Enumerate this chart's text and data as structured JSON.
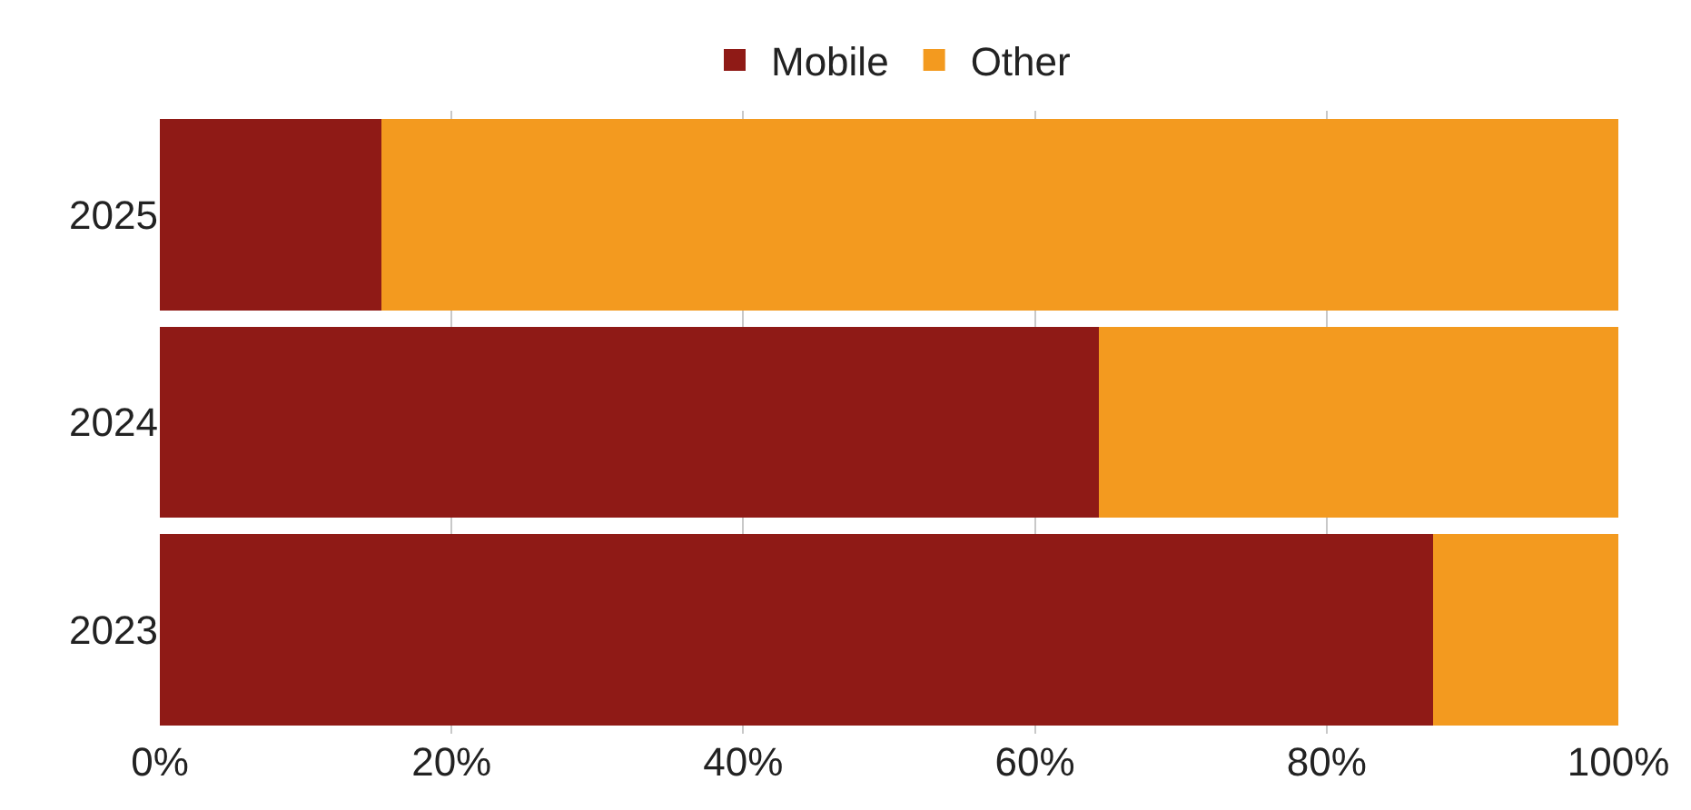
{
  "chart_data": {
    "type": "bar",
    "orientation": "horizontal",
    "stacked": true,
    "categories": [
      "2025",
      "2024",
      "2023"
    ],
    "series": [
      {
        "name": "Mobile",
        "color": "#8f1a16",
        "values": [
          15.2,
          64.4,
          87.3
        ]
      },
      {
        "name": "Other",
        "color": "#f39a1f",
        "values": [
          84.8,
          35.6,
          12.7
        ]
      }
    ],
    "xlim": [
      0,
      100
    ],
    "xticks": [
      {
        "value": 0,
        "label": "0%"
      },
      {
        "value": 20,
        "label": "20%"
      },
      {
        "value": 40,
        "label": "40%"
      },
      {
        "value": 60,
        "label": "60%"
      },
      {
        "value": 80,
        "label": "80%"
      },
      {
        "value": 100,
        "label": "100%"
      }
    ],
    "grid": "x",
    "legend": "top"
  }
}
